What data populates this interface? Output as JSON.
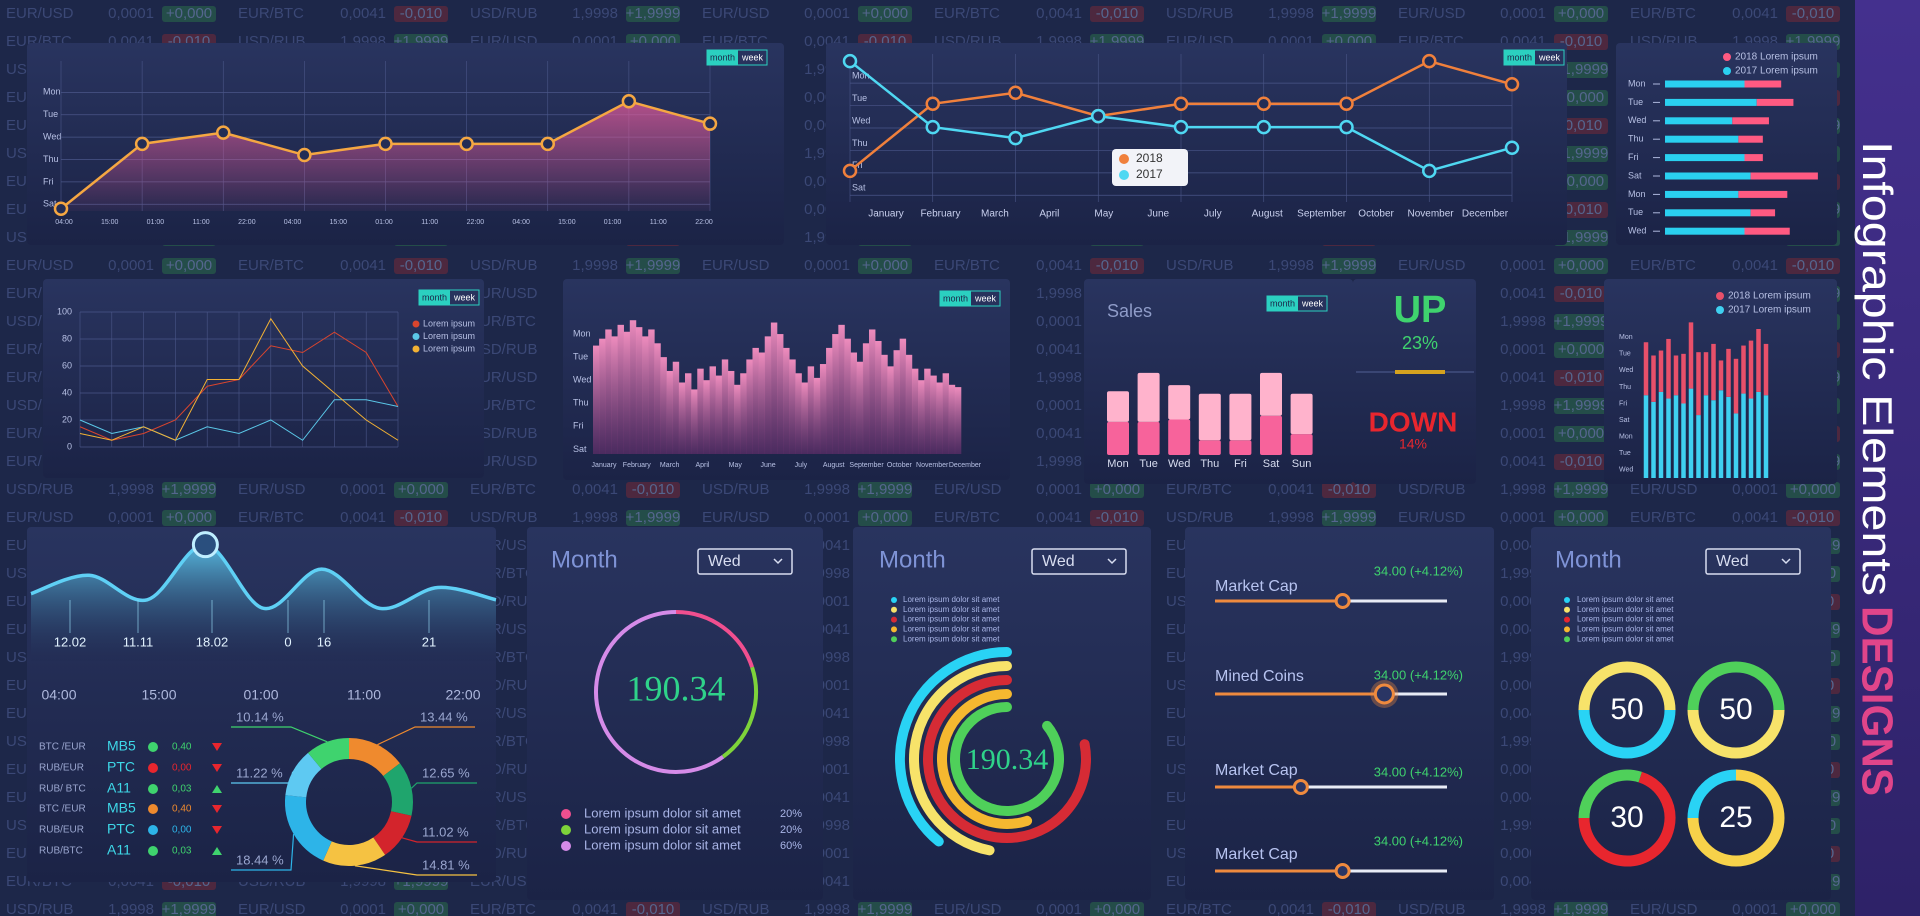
{
  "background_tickers": [
    {
      "pair": "EUR/USD",
      "price": "0,0001",
      "change": "+0,000",
      "color": "#2f7d4a"
    },
    {
      "pair": "EUR/BTC",
      "price": "0,0041",
      "change": "-0,010",
      "color": "#8a2a33"
    },
    {
      "pair": "USD/RUB",
      "price": "1,9998",
      "change": "+1,9999",
      "color": "#2f7d4a"
    }
  ],
  "toggle": [
    "month",
    "week"
  ],
  "banner": {
    "title": "Infographic Elements",
    "subtitle": "DESIGNS"
  },
  "stats": {
    "up": "UP",
    "up_value": "23%",
    "down": "DOWN",
    "down_value": "14%"
  },
  "table": {
    "rows": [
      [
        "BTC /EUR",
        "MB5",
        "0,40"
      ],
      [
        "RUB/EUR",
        "PTC",
        "0,00"
      ],
      [
        "RUB/ BTC",
        "A11",
        "0,03"
      ],
      [
        "BTC /EUR",
        "MB5",
        "0,40"
      ],
      [
        "RUB/EUR",
        "PTC",
        "0,00"
      ],
      [
        "RUB/BTC",
        "A11",
        "0,03"
      ]
    ],
    "colors": [
      "#3fd36e",
      "#e8262e",
      "#3fd36e",
      "#ef8a2e",
      "#2db4e8",
      "#3fd36e"
    ]
  },
  "chart_data": [
    {
      "type": "area",
      "yticks": [
        {
          "value": 6,
          "label": "Mon"
        },
        {
          "value": 5,
          "label": "Tue"
        },
        {
          "value": 4,
          "label": "Wed"
        },
        {
          "value": 3,
          "label": "Thu"
        },
        {
          "value": 2,
          "label": "Fri"
        },
        {
          "value": 1,
          "label": "Sat"
        }
      ],
      "ylim": [
        0.7,
        7.4
      ],
      "x_labels": [
        "04:00",
        "15:00",
        "01:00",
        "11:00",
        "22:00",
        "04:00",
        "15:00",
        "01:00",
        "11:00",
        "22:00",
        "04:00",
        "15:00",
        "01:00",
        "11:00",
        "22:00"
      ],
      "values": [
        0.8,
        3.7,
        4.2,
        3.2,
        3.7,
        3.7,
        3.7,
        5.6,
        4.6
      ],
      "color": "#f5a742",
      "grid": true
    },
    {
      "type": "line",
      "yticks": [
        {
          "value": 6,
          "label": "Mon"
        },
        {
          "value": 5,
          "label": "Tue"
        },
        {
          "value": 4,
          "label": "Wed"
        },
        {
          "value": 3,
          "label": "Thu"
        },
        {
          "value": 2,
          "label": "Fri"
        },
        {
          "value": 1,
          "label": "Sat"
        }
      ],
      "ylim": [
        0.7,
        7.3
      ],
      "x_labels": [
        "January",
        "February",
        "March",
        "April",
        "May",
        "June",
        "July",
        "August",
        "September",
        "October",
        "November",
        "December"
      ],
      "series": [
        {
          "name": "2018",
          "color": "#f0803c",
          "values": [
            2.09,
            5.08,
            5.57,
            4.53,
            5.08,
            5.08,
            5.08,
            6.98,
            5.95
          ]
        },
        {
          "name": "2017",
          "color": "#4fd8f2",
          "values": [
            6.98,
            4.04,
            3.55,
            4.53,
            4.04,
            4.04,
            4.04,
            2.09,
            3.12
          ]
        }
      ],
      "grid": true
    },
    {
      "type": "stacked_barh",
      "categories": [
        "Mon",
        "Tue",
        "Wed",
        "Thu",
        "Fri",
        "Sat",
        "Mon",
        "Tue",
        "Wed"
      ],
      "xlim": [
        0,
        130
      ],
      "series": [
        {
          "name": "2018 Lorem ipsum",
          "color": "#ff5a82",
          "values": [
            30,
            30,
            30,
            20,
            15,
            55,
            40,
            20,
            37
          ]
        },
        {
          "name": "2017 Lorem ipsum",
          "color": "#2ad0f0",
          "values": [
            65,
            75,
            55,
            60,
            65,
            70,
            60,
            70,
            65
          ]
        }
      ]
    },
    {
      "type": "line",
      "ylim": [
        0,
        100
      ],
      "yticks": [
        0,
        20,
        40,
        60,
        80,
        100
      ],
      "series": [
        {
          "name": "Lorem ipsum",
          "color": "#d9452e",
          "values": [
            15,
            5,
            10,
            20,
            45,
            50,
            75,
            70,
            85,
            70,
            30
          ]
        },
        {
          "name": "Lorem ipsum",
          "color": "#5bc8e8",
          "values": [
            20,
            10,
            15,
            5,
            15,
            10,
            20,
            5,
            35,
            35,
            30
          ]
        },
        {
          "name": "Lorem ipsum",
          "color": "#f2b134",
          "values": [
            10,
            5,
            15,
            5,
            50,
            50,
            95,
            60,
            40,
            20,
            5
          ]
        }
      ],
      "grid": true
    },
    {
      "type": "bar",
      "yticks": [
        {
          "value": 6,
          "label": "Mon"
        },
        {
          "value": 5,
          "label": "Tue"
        },
        {
          "value": 4,
          "label": "Wed"
        },
        {
          "value": 3,
          "label": "Thu"
        },
        {
          "value": 2,
          "label": "Fri"
        },
        {
          "value": 1,
          "label": "Sat"
        }
      ],
      "ylim": [
        0.8,
        7
      ],
      "x_labels": [
        "January",
        "February",
        "March",
        "April",
        "May",
        "June",
        "July",
        "August",
        "September",
        "October",
        "November",
        "December"
      ],
      "values": [
        5.5,
        5.8,
        6.2,
        5.9,
        6.4,
        6.1,
        6.6,
        6.3,
        5.9,
        6.2,
        5.6,
        5.0,
        4.4,
        4.8,
        3.9,
        4.3,
        3.6,
        4.5,
        4.0,
        4.6,
        4.2,
        4.9,
        4.4,
        3.8,
        4.3,
        4.9,
        5.4,
        5.2,
        5.9,
        6.5,
        6.0,
        5.4,
        4.9,
        4.3,
        3.9,
        4.6,
        4.1,
        4.7,
        5.4,
        6.0,
        6.4,
        5.8,
        5.2,
        4.8,
        5.6,
        6.2,
        5.7,
        5.1,
        4.6,
        5.3,
        5.8,
        5.1,
        4.5,
        4.0,
        4.5,
        4.2,
        3.9,
        4.3,
        3.8,
        3.7
      ],
      "color": "#e06aa0"
    },
    {
      "type": "stacked_bar",
      "title": "Sales",
      "categories": [
        "Mon",
        "Tue",
        "Wed",
        "Thu",
        "Fri",
        "Sat",
        "Sun"
      ],
      "ylim": [
        0,
        80
      ],
      "series": [
        {
          "color": "#f7639b",
          "values": [
            27,
            27,
            29,
            12,
            12,
            32,
            17
          ]
        },
        {
          "color": "#ffb3cc",
          "values": [
            25,
            40,
            28,
            38,
            38,
            35,
            33
          ]
        }
      ]
    },
    {
      "type": "stacked_bar",
      "yticks": [
        {
          "value": 9,
          "label": "Mon"
        },
        {
          "value": 8,
          "label": "Tue"
        },
        {
          "value": 7,
          "label": "Wed"
        },
        {
          "value": 6,
          "label": "Thu"
        },
        {
          "value": 5,
          "label": "Fri"
        },
        {
          "value": 4,
          "label": "Sat"
        },
        {
          "value": 3,
          "label": "Mon"
        },
        {
          "value": 2,
          "label": "Tue"
        },
        {
          "value": 1,
          "label": "Wed"
        }
      ],
      "ylim": [
        0.5,
        9.5
      ],
      "series": [
        {
          "name": "2018 Lorem ipsum",
          "color": "#e8506a",
          "values": [
            3.2,
            2.8,
            2.5,
            3.6,
            2.4,
            3.0,
            4.0,
            3.8,
            2.6,
            3.4,
            1.8,
            2.9,
            3.3,
            2.9,
            3.5,
            3.8,
            3.1
          ]
        },
        {
          "name": "2017 Lorem ipsum",
          "color": "#3fd0f0",
          "values": [
            5.0,
            4.6,
            5.2,
            4.8,
            5.0,
            4.5,
            5.4,
            3.8,
            5.0,
            4.7,
            5.3,
            4.9,
            3.9,
            5.1,
            4.8,
            5.2,
            5.0
          ]
        }
      ]
    },
    {
      "type": "wave",
      "values": [
        55,
        70,
        50,
        95,
        43,
        75,
        43,
        60,
        50
      ],
      "ylim": [
        0,
        100
      ],
      "annotations": [
        "12.02",
        "11.11",
        "18.02",
        "0",
        "16",
        "21"
      ],
      "x_labels": [
        "04:00",
        "15:00",
        "01:00",
        "11:00",
        "22:00"
      ],
      "color": "#5fd0f5"
    },
    {
      "type": "pie",
      "values": [
        13.44,
        12.65,
        11.02,
        14.81,
        18.44,
        11.22,
        10.14
      ],
      "value_labels": [
        "13.44 %",
        "12.65 %",
        "11.02 %",
        "14.81 %",
        "18.44 %",
        "11.22 %",
        "10.14 %"
      ],
      "colors": [
        "#ef8a2e",
        "#1fa56d",
        "#d3242c",
        "#f5c242",
        "#2db4e8",
        "#5ec9f2",
        "#3fd36e"
      ]
    },
    {
      "type": "gauge",
      "title": "Month",
      "dropdown": "Wed",
      "value": 190.34,
      "series": [
        {
          "name": "Lorem ipsum dolor sit amet",
          "color": "#f04f8f",
          "value": 20,
          "value_label": "20%"
        },
        {
          "name": "Lorem ipsum dolor sit amet",
          "color": "#7ed33a",
          "value": 20,
          "value_label": "20%"
        },
        {
          "name": "Lorem ipsum dolor sit amet",
          "color": "#d58be8",
          "value": 60,
          "value_label": "60%"
        }
      ]
    },
    {
      "type": "radial",
      "title": "Month",
      "dropdown": "Wed",
      "value": 190.34,
      "series": [
        {
          "name": "Lorem ipsum dolor sit amet",
          "color": "#29d3f5",
          "value": 39
        },
        {
          "name": "Lorem ipsum dolor sit amet",
          "color": "#f7e36a",
          "value": 47
        },
        {
          "name": "Lorem ipsum dolor sit amet",
          "color": "#d62b35",
          "value": 78
        },
        {
          "name": "Lorem ipsum dolor sit amet",
          "color": "#f5b830",
          "value": 55
        },
        {
          "name": "Lorem ipsum dolor sit amet",
          "color": "#4fd05a",
          "value": 86
        }
      ]
    },
    {
      "type": "slider",
      "xlim": [
        0,
        100
      ],
      "rows": [
        {
          "name": "Market Cap",
          "caption": "34.00 (+4.12%)",
          "value": 55
        },
        {
          "name": "Mined Coins",
          "caption": "34.00 (+4.12%)",
          "value": 73
        },
        {
          "name": "Market Cap",
          "caption": "34.00 (+4.12%)",
          "value": 37
        },
        {
          "name": "Market Cap",
          "caption": "34.00 (+4.12%)",
          "value": 55
        }
      ]
    },
    {
      "type": "ring",
      "title": "Month",
      "dropdown": "Wed",
      "legend": [
        {
          "name": "Lorem ipsum dolor sit amet",
          "color": "#29d3f5"
        },
        {
          "name": "Lorem ipsum dolor sit amet",
          "color": "#f7e36a"
        },
        {
          "name": "Lorem ipsum dolor sit amet",
          "color": "#e8262e"
        },
        {
          "name": "Lorem ipsum dolor sit amet",
          "color": "#f5b830"
        },
        {
          "name": "Lorem ipsum dolor sit amet",
          "color": "#4fd05a"
        }
      ],
      "values": [
        50,
        50,
        30,
        25
      ],
      "colors": [
        [
          "#f7e36a",
          "#29d3f5"
        ],
        [
          "#4fd05a",
          "#f7e36a"
        ],
        [
          "#4fd05a",
          "#e8262e"
        ],
        [
          "#29d3f5",
          "#f7d24a"
        ]
      ]
    }
  ]
}
